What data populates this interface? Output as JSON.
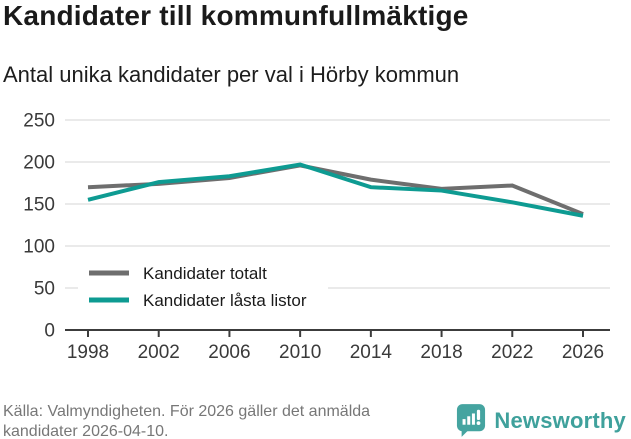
{
  "header": {
    "title": "Kandidater till kommunfullmäktige",
    "subtitle": "Antal unika kandidater per val i Hörby kommun"
  },
  "chart_data": {
    "type": "line",
    "categories": [
      "1998",
      "2002",
      "2006",
      "2010",
      "2014",
      "2018",
      "2022",
      "2026"
    ],
    "series": [
      {
        "name": "Kandidater totalt",
        "color": "#6e6e6e",
        "values": [
          170,
          174,
          181,
          196,
          179,
          168,
          172,
          138
        ]
      },
      {
        "name": "Kandidater låsta listor",
        "color": "#0e9b92",
        "values": [
          155,
          176,
          183,
          197,
          170,
          166,
          152,
          136
        ]
      }
    ],
    "title": "Kandidater till kommunfullmäktige",
    "subtitle": "Antal unika kandidater per val i Hörby kommun",
    "xlabel": "",
    "ylabel": "",
    "ylim": [
      0,
      250
    ],
    "yticks": [
      0,
      50,
      100,
      150,
      200,
      250
    ],
    "grid": true,
    "legend_position": "inside-bottom-left"
  },
  "footer": {
    "source_line1": "Källa: Valmyndigheten. För 2026 gäller det anmälda",
    "source_line2": "kandidater 2026-04-10.",
    "brand": "Newsworthy"
  },
  "colors": {
    "teal_line": "#0e9b92",
    "gray_line": "#6e6e6e",
    "gridline": "#dedede",
    "axis": "#3c3c3c",
    "tick_label": "#3a3a3a",
    "logo_teal": "#45a4a0",
    "brand_text": "#3fa19c"
  }
}
